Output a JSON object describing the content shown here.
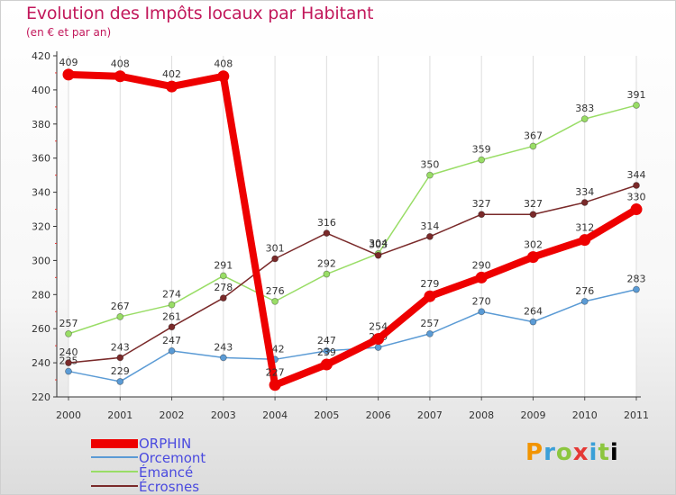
{
  "header": {
    "title": "Evolution des Impôts locaux par Habitant",
    "subtitle": "(en € et par an)"
  },
  "brand": {
    "letters": [
      "P",
      "r",
      "o",
      "x",
      "i",
      "t",
      "i"
    ]
  },
  "chart_data": {
    "type": "line",
    "title": "Evolution des Impôts locaux par Habitant",
    "subtitle": "(en € et par an)",
    "xlabel": "",
    "ylabel": "",
    "x": [
      "2000",
      "2001",
      "2002",
      "2003",
      "2004",
      "2005",
      "2006",
      "2007",
      "2008",
      "2009",
      "2010",
      "2011"
    ],
    "ylim": [
      220,
      420
    ],
    "yticks": [
      220,
      240,
      260,
      280,
      300,
      320,
      340,
      360,
      380,
      400,
      420
    ],
    "grid": "vertical",
    "legend_position": "bottom-left",
    "series": [
      {
        "name": "ORPHIN",
        "color": "#ee0000",
        "emphasis": true,
        "values": [
          409,
          408,
          402,
          408,
          227,
          239,
          254,
          279,
          290,
          302,
          312,
          330
        ]
      },
      {
        "name": "Orcemont",
        "color": "#5b9bd5",
        "emphasis": false,
        "values": [
          235,
          229,
          247,
          243,
          242,
          247,
          249,
          257,
          270,
          264,
          276,
          283
        ]
      },
      {
        "name": "Émancé",
        "color": "#99dd66",
        "emphasis": false,
        "values": [
          257,
          267,
          274,
          291,
          276,
          292,
          304,
          350,
          359,
          367,
          383,
          391
        ]
      },
      {
        "name": "Écrosnes",
        "color": "#7a2a2a",
        "emphasis": false,
        "values": [
          240,
          243,
          261,
          278,
          301,
          316,
          303,
          314,
          327,
          327,
          334,
          344
        ]
      }
    ]
  }
}
